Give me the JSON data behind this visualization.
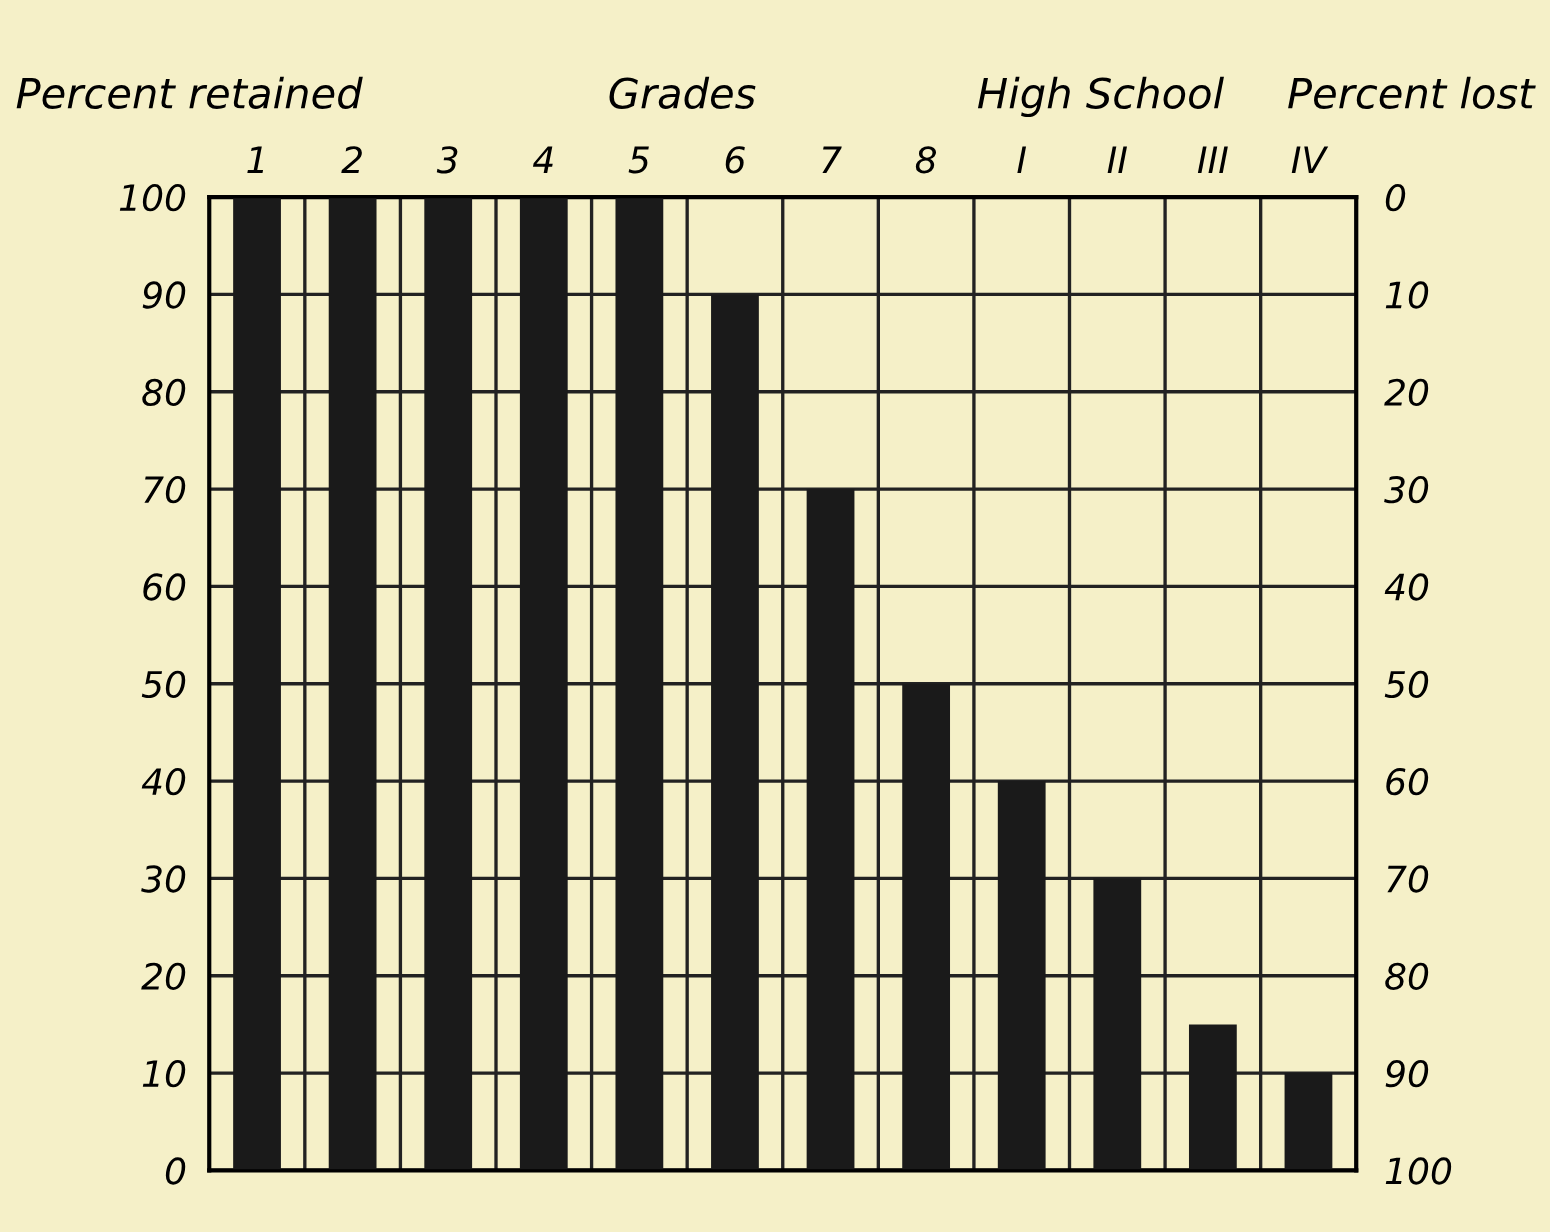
{
  "chart_data": {
    "type": "bar",
    "categories": [
      "1",
      "2",
      "3",
      "4",
      "5",
      "6",
      "7",
      "8",
      "I",
      "II",
      "III",
      "IV"
    ],
    "values": [
      100,
      100,
      100,
      100,
      100,
      90,
      70,
      50,
      40,
      30,
      15,
      10
    ],
    "color": "#1a1a1a",
    "ylabel": "Percent retained",
    "y2label": "Percent lost",
    "annotations": [
      "Grades",
      "High School"
    ],
    "ylim": [
      0,
      100
    ],
    "yticks": [
      0,
      10,
      20,
      30,
      40,
      50,
      60,
      70,
      80,
      90,
      100
    ],
    "y2lim": [
      100,
      0
    ],
    "y2ticks": [
      0,
      10,
      20,
      30,
      40,
      50,
      60,
      70,
      80,
      90,
      100
    ],
    "grid": true
  }
}
